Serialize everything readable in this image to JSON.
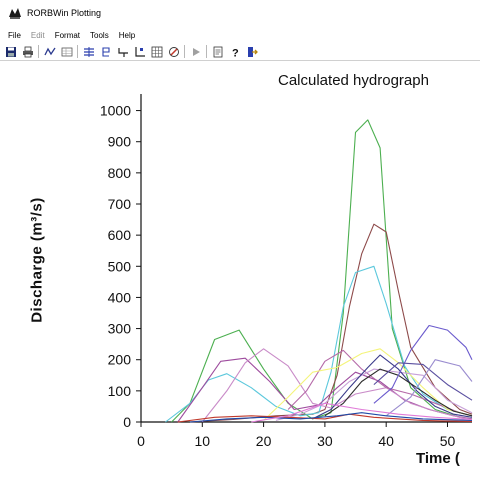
{
  "window": {
    "title": "RORBWin Plotting",
    "app_icon": "rorb-app-icon"
  },
  "menu": [
    {
      "label": "File",
      "enabled": true
    },
    {
      "label": "Edit",
      "enabled": false
    },
    {
      "label": "Format",
      "enabled": true
    },
    {
      "label": "Tools",
      "enabled": true
    },
    {
      "label": "Help",
      "enabled": true
    }
  ],
  "toolbar": [
    "save-icon",
    "print-icon",
    "sep",
    "curve-icon",
    "table-icon",
    "sep",
    "hydrograph-icon",
    "split-icon",
    "step-icon",
    "axis-icon",
    "grid-icon",
    "options-icon",
    "sep",
    "play-icon",
    "sep",
    "page-icon",
    "help-icon",
    "exit-icon"
  ],
  "chart_data": {
    "type": "line",
    "title": "Calculated hydrograph",
    "xlabel": "Time (",
    "ylabel": "Discharge (m³/s)",
    "xlim": [
      0,
      54
    ],
    "ylim": [
      0,
      1050
    ],
    "x_ticks": [
      0,
      10,
      20,
      30,
      40,
      50
    ],
    "y_ticks": [
      0,
      100,
      200,
      300,
      400,
      500,
      600,
      700,
      800,
      900,
      1000
    ],
    "grid": false,
    "series": [
      {
        "color": "#4caf50",
        "x": [
          5,
          8,
          12,
          16,
          20,
          24,
          28,
          31,
          33,
          35,
          37,
          39,
          41,
          44,
          48,
          52,
          54
        ],
        "y": [
          0,
          60,
          265,
          295,
          170,
          60,
          10,
          30,
          350,
          930,
          970,
          880,
          300,
          110,
          40,
          15,
          10
        ]
      },
      {
        "color": "#8d4a4a",
        "x": [
          8,
          15,
          22,
          28,
          30,
          32,
          34,
          36,
          38,
          40,
          42,
          44,
          48,
          52,
          54
        ],
        "y": [
          0,
          8,
          20,
          25,
          40,
          150,
          370,
          540,
          635,
          610,
          420,
          240,
          110,
          40,
          25
        ]
      },
      {
        "color": "#5cc8dc",
        "x": [
          4,
          8,
          11,
          14,
          18,
          22,
          26,
          29,
          31,
          33,
          35,
          38,
          40,
          43,
          46,
          50,
          54
        ],
        "y": [
          0,
          60,
          135,
          155,
          110,
          50,
          20,
          30,
          160,
          370,
          480,
          500,
          380,
          180,
          90,
          40,
          20
        ]
      },
      {
        "color": "#9e4c9e",
        "x": [
          6,
          10,
          13,
          17,
          21,
          25,
          29,
          32,
          35,
          39,
          43,
          47,
          51,
          54
        ],
        "y": [
          0,
          110,
          195,
          205,
          130,
          40,
          55,
          110,
          160,
          130,
          70,
          40,
          20,
          10
        ]
      },
      {
        "color": "#c98bc8",
        "x": [
          10,
          14,
          17,
          20,
          24,
          28,
          31,
          35,
          40,
          44,
          48,
          52,
          54
        ],
        "y": [
          0,
          100,
          190,
          235,
          180,
          60,
          45,
          90,
          110,
          60,
          35,
          15,
          8
        ]
      },
      {
        "color": "#b56aa8",
        "x": [
          24,
          27,
          30,
          33,
          36,
          40,
          44,
          48,
          52,
          54
        ],
        "y": [
          40,
          100,
          195,
          230,
          170,
          110,
          90,
          60,
          30,
          20
        ]
      },
      {
        "color": "#f4f47a",
        "x": [
          20,
          24,
          28,
          32,
          36,
          39,
          42,
          46,
          50,
          54
        ],
        "y": [
          5,
          80,
          160,
          175,
          220,
          235,
          190,
          110,
          40,
          20
        ]
      },
      {
        "color": "#c8a0d8",
        "x": [
          22,
          26,
          30,
          34,
          38,
          42,
          46,
          50,
          54
        ],
        "y": [
          5,
          25,
          60,
          130,
          170,
          160,
          150,
          70,
          30
        ]
      },
      {
        "color": "#3a3a8a",
        "x": [
          28,
          31,
          34,
          37,
          39,
          42,
          45,
          48,
          51,
          54
        ],
        "y": [
          10,
          40,
          110,
          175,
          215,
          170,
          100,
          50,
          25,
          15
        ]
      },
      {
        "color": "#2b2b2b",
        "x": [
          30,
          33,
          36,
          39,
          42,
          45,
          48,
          51,
          54
        ],
        "y": [
          20,
          60,
          130,
          170,
          150,
          110,
          70,
          35,
          20
        ]
      },
      {
        "color": "#6a5acd",
        "x": [
          38,
          41,
          44,
          47,
          50,
          53,
          54
        ],
        "y": [
          60,
          110,
          230,
          310,
          295,
          240,
          200
        ]
      },
      {
        "color": "#5a4fa0",
        "x": [
          38,
          42,
          46,
          50,
          54
        ],
        "y": [
          120,
          190,
          185,
          120,
          70
        ]
      },
      {
        "color": "#9a8ccf",
        "x": [
          40,
          44,
          48,
          52,
          54
        ],
        "y": [
          20,
          80,
          200,
          180,
          130
        ]
      },
      {
        "color": "#c0392b",
        "x": [
          6,
          12,
          18,
          24,
          30,
          34,
          38,
          42,
          46,
          50,
          54
        ],
        "y": [
          0,
          15,
          20,
          15,
          10,
          25,
          15,
          10,
          5,
          3,
          2
        ]
      },
      {
        "color": "#1f4aa8",
        "x": [
          8,
          14,
          20,
          26,
          32,
          36,
          40,
          46,
          54
        ],
        "y": [
          0,
          10,
          15,
          10,
          20,
          30,
          20,
          10,
          5
        ]
      },
      {
        "color": "#e07bd8",
        "x": [
          18,
          24,
          30,
          36,
          42,
          48,
          54
        ],
        "y": [
          0,
          20,
          60,
          40,
          25,
          15,
          8
        ]
      }
    ]
  }
}
